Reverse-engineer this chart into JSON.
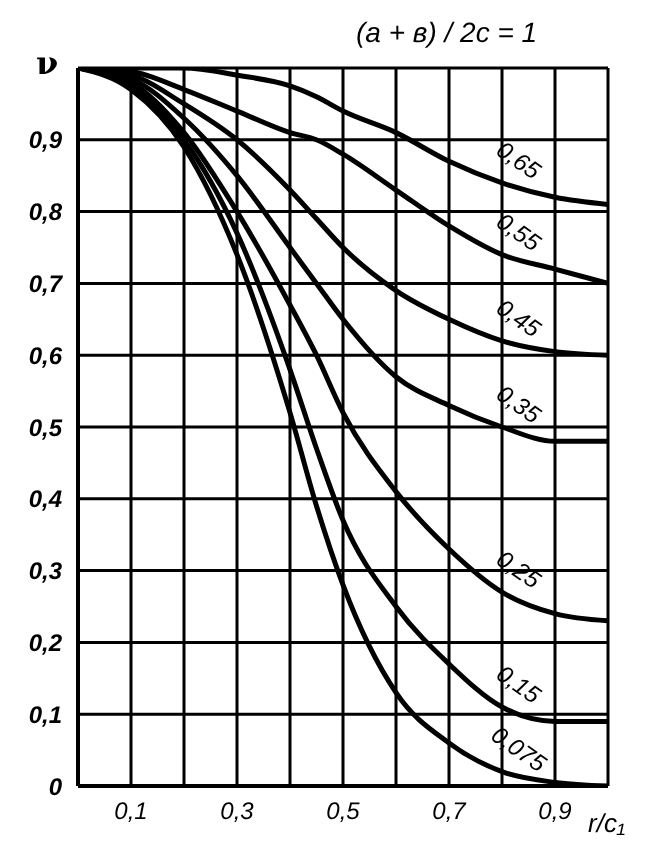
{
  "chart_data": {
    "type": "line",
    "title": "(a + в) / 2c = 1",
    "ylabel": "ν",
    "xlabel": "r/c₁",
    "x": [
      0,
      0.1,
      0.2,
      0.3,
      0.4,
      0.45,
      0.5,
      0.6,
      0.7,
      0.8,
      0.9,
      1.0
    ],
    "series": [
      {
        "name": "0,65",
        "color": "#000000",
        "values": [
          1,
          1,
          1,
          0.99,
          0.975,
          0.96,
          0.94,
          0.91,
          0.87,
          0.84,
          0.82,
          0.81
        ]
      },
      {
        "name": "0,55",
        "color": "#000000",
        "values": [
          1,
          0.995,
          0.97,
          0.94,
          0.91,
          0.9,
          0.88,
          0.83,
          0.78,
          0.74,
          0.72,
          0.7
        ]
      },
      {
        "name": "0,45",
        "color": "#000000",
        "values": [
          1,
          0.99,
          0.95,
          0.9,
          0.83,
          0.79,
          0.75,
          0.69,
          0.65,
          0.62,
          0.605,
          0.6
        ]
      },
      {
        "name": "0,35",
        "color": "#000000",
        "values": [
          1,
          0.985,
          0.93,
          0.85,
          0.75,
          0.7,
          0.65,
          0.57,
          0.53,
          0.5,
          0.48,
          0.48
        ]
      },
      {
        "name": "0,25",
        "color": "#000000",
        "values": [
          1,
          0.98,
          0.91,
          0.8,
          0.67,
          0.6,
          0.52,
          0.41,
          0.33,
          0.27,
          0.24,
          0.23
        ]
      },
      {
        "name": "0,15",
        "color": "#000000",
        "values": [
          1,
          0.975,
          0.9,
          0.77,
          0.58,
          0.47,
          0.37,
          0.25,
          0.17,
          0.11,
          0.09,
          0.09
        ]
      },
      {
        "name": "0,075",
        "color": "#000000",
        "values": [
          1,
          0.97,
          0.89,
          0.74,
          0.52,
          0.39,
          0.28,
          0.13,
          0.06,
          0.02,
          0.005,
          0
        ]
      }
    ],
    "xlim": [
      0,
      1
    ],
    "ylim": [
      0,
      1
    ],
    "xticks": [
      {
        "value": 0,
        "label": null
      },
      {
        "value": 0.1,
        "label": "0,1"
      },
      {
        "value": 0.2,
        "label": null
      },
      {
        "value": 0.3,
        "label": "0,3"
      },
      {
        "value": 0.4,
        "label": null
      },
      {
        "value": 0.5,
        "label": "0,5"
      },
      {
        "value": 0.6,
        "label": null
      },
      {
        "value": 0.7,
        "label": "0,7"
      },
      {
        "value": 0.8,
        "label": null
      },
      {
        "value": 0.9,
        "label": "0,9"
      },
      {
        "value": 1,
        "label": null
      }
    ],
    "yticks": [
      0,
      {
        "value": 0.1,
        "label": "0,1"
      },
      {
        "value": 0.2,
        "label": "0,2"
      },
      {
        "value": 0.3,
        "label": "0,3"
      },
      {
        "value": 0.4,
        "label": "0,4"
      },
      {
        "value": 0.5,
        "label": "0,5"
      },
      {
        "value": 0.6,
        "label": "0,6"
      },
      {
        "value": 0.7,
        "label": "0,7"
      },
      {
        "value": 0.8,
        "label": "0,8"
      },
      {
        "value": 0.9,
        "label": "0,9"
      },
      {
        "value": 1,
        "label": null
      }
    ],
    "grid": true,
    "legend": false,
    "marker": "none",
    "line_style": "solid"
  }
}
